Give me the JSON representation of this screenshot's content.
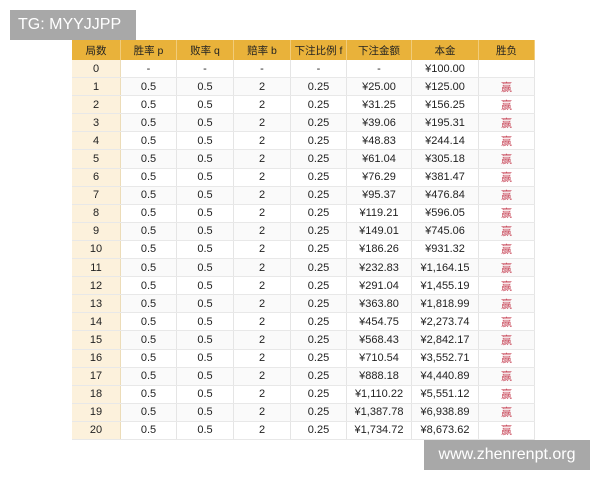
{
  "watermarks": {
    "top": "TG: MYYJJPP",
    "bottom": "www.zhenrenpt.org"
  },
  "table": {
    "headers": [
      "局数",
      "胜率 p",
      "败率 q",
      "赔率 b",
      "下注比例 f",
      "下注金额",
      "本金",
      "胜负"
    ],
    "rows": [
      [
        "0",
        "-",
        "-",
        "-",
        "-",
        "-",
        "¥100.00",
        ""
      ],
      [
        "1",
        "0.5",
        "0.5",
        "2",
        "0.25",
        "¥25.00",
        "¥125.00",
        "赢"
      ],
      [
        "2",
        "0.5",
        "0.5",
        "2",
        "0.25",
        "¥31.25",
        "¥156.25",
        "赢"
      ],
      [
        "3",
        "0.5",
        "0.5",
        "2",
        "0.25",
        "¥39.06",
        "¥195.31",
        "赢"
      ],
      [
        "4",
        "0.5",
        "0.5",
        "2",
        "0.25",
        "¥48.83",
        "¥244.14",
        "赢"
      ],
      [
        "5",
        "0.5",
        "0.5",
        "2",
        "0.25",
        "¥61.04",
        "¥305.18",
        "赢"
      ],
      [
        "6",
        "0.5",
        "0.5",
        "2",
        "0.25",
        "¥76.29",
        "¥381.47",
        "赢"
      ],
      [
        "7",
        "0.5",
        "0.5",
        "2",
        "0.25",
        "¥95.37",
        "¥476.84",
        "赢"
      ],
      [
        "8",
        "0.5",
        "0.5",
        "2",
        "0.25",
        "¥119.21",
        "¥596.05",
        "赢"
      ],
      [
        "9",
        "0.5",
        "0.5",
        "2",
        "0.25",
        "¥149.01",
        "¥745.06",
        "赢"
      ],
      [
        "10",
        "0.5",
        "0.5",
        "2",
        "0.25",
        "¥186.26",
        "¥931.32",
        "赢"
      ],
      [
        "11",
        "0.5",
        "0.5",
        "2",
        "0.25",
        "¥232.83",
        "¥1,164.15",
        "赢"
      ],
      [
        "12",
        "0.5",
        "0.5",
        "2",
        "0.25",
        "¥291.04",
        "¥1,455.19",
        "赢"
      ],
      [
        "13",
        "0.5",
        "0.5",
        "2",
        "0.25",
        "¥363.80",
        "¥1,818.99",
        "赢"
      ],
      [
        "14",
        "0.5",
        "0.5",
        "2",
        "0.25",
        "¥454.75",
        "¥2,273.74",
        "赢"
      ],
      [
        "15",
        "0.5",
        "0.5",
        "2",
        "0.25",
        "¥568.43",
        "¥2,842.17",
        "赢"
      ],
      [
        "16",
        "0.5",
        "0.5",
        "2",
        "0.25",
        "¥710.54",
        "¥3,552.71",
        "赢"
      ],
      [
        "17",
        "0.5",
        "0.5",
        "2",
        "0.25",
        "¥888.18",
        "¥4,440.89",
        "赢"
      ],
      [
        "18",
        "0.5",
        "0.5",
        "2",
        "0.25",
        "¥1,110.22",
        "¥5,551.12",
        "赢"
      ],
      [
        "19",
        "0.5",
        "0.5",
        "2",
        "0.25",
        "¥1,387.78",
        "¥6,938.89",
        "赢"
      ],
      [
        "20",
        "0.5",
        "0.5",
        "2",
        "0.25",
        "¥1,734.72",
        "¥8,673.62",
        "赢"
      ]
    ]
  },
  "colors": {
    "header": "#e9b23a",
    "first_col": "#fcf1dc",
    "win": "#c8485a"
  }
}
